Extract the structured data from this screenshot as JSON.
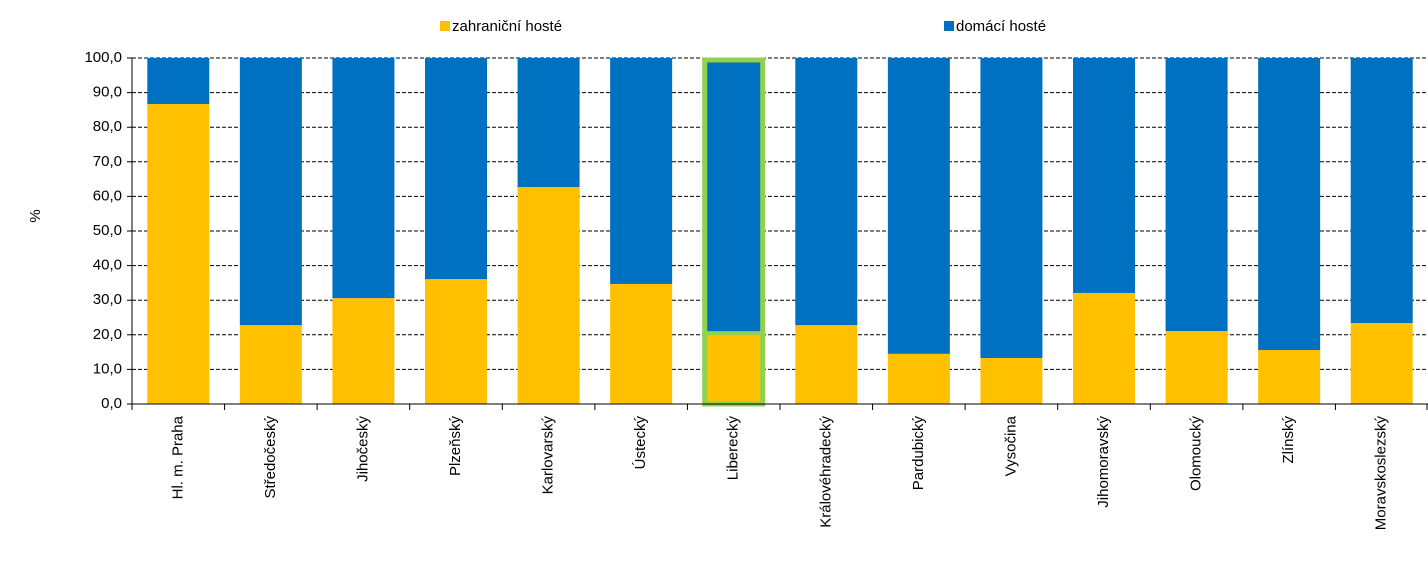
{
  "chart_data": {
    "type": "stacked_bar",
    "y_label": "%",
    "categories": [
      "Hl. m. Praha",
      "Středočeský",
      "Jihočeský",
      "Plzeňský",
      "Karlovarský",
      "Ústecký",
      "Liberecký",
      "Královéhradecký",
      "Pardubický",
      "Vysočina",
      "Jihomoravský",
      "Olomoucký",
      "Zlínský",
      "Moravskoslezský"
    ],
    "series": [
      {
        "name": "zahraniční hosté",
        "color": "#ffc000",
        "values": [
          86.7,
          22.8,
          30.6,
          36.1,
          62.7,
          34.7,
          20.5,
          22.8,
          14.5,
          13.3,
          32.1,
          21.1,
          15.6,
          23.4
        ]
      },
      {
        "name": "domácí hosté",
        "color": "#0070c0",
        "values": [
          13.3,
          77.2,
          69.4,
          63.9,
          37.3,
          65.3,
          79.5,
          77.2,
          85.5,
          86.7,
          67.9,
          78.9,
          84.4,
          76.6
        ]
      }
    ],
    "ylim": [
      0,
      100
    ],
    "yticks": [
      {
        "value": 0,
        "label": "0,0"
      },
      {
        "value": 10,
        "label": "10,0"
      },
      {
        "value": 20,
        "label": "20,0"
      },
      {
        "value": 30,
        "label": "30,0"
      },
      {
        "value": 40,
        "label": "40,0"
      },
      {
        "value": 50,
        "label": "50,0"
      },
      {
        "value": 60,
        "label": "60,0"
      },
      {
        "value": 70,
        "label": "70,0"
      },
      {
        "value": 80,
        "label": "80,0"
      },
      {
        "value": 90,
        "label": "90,0"
      },
      {
        "value": 100,
        "label": "100,0"
      }
    ],
    "grid": true,
    "highlight_index": 6,
    "highlight_color": "#92d050"
  }
}
